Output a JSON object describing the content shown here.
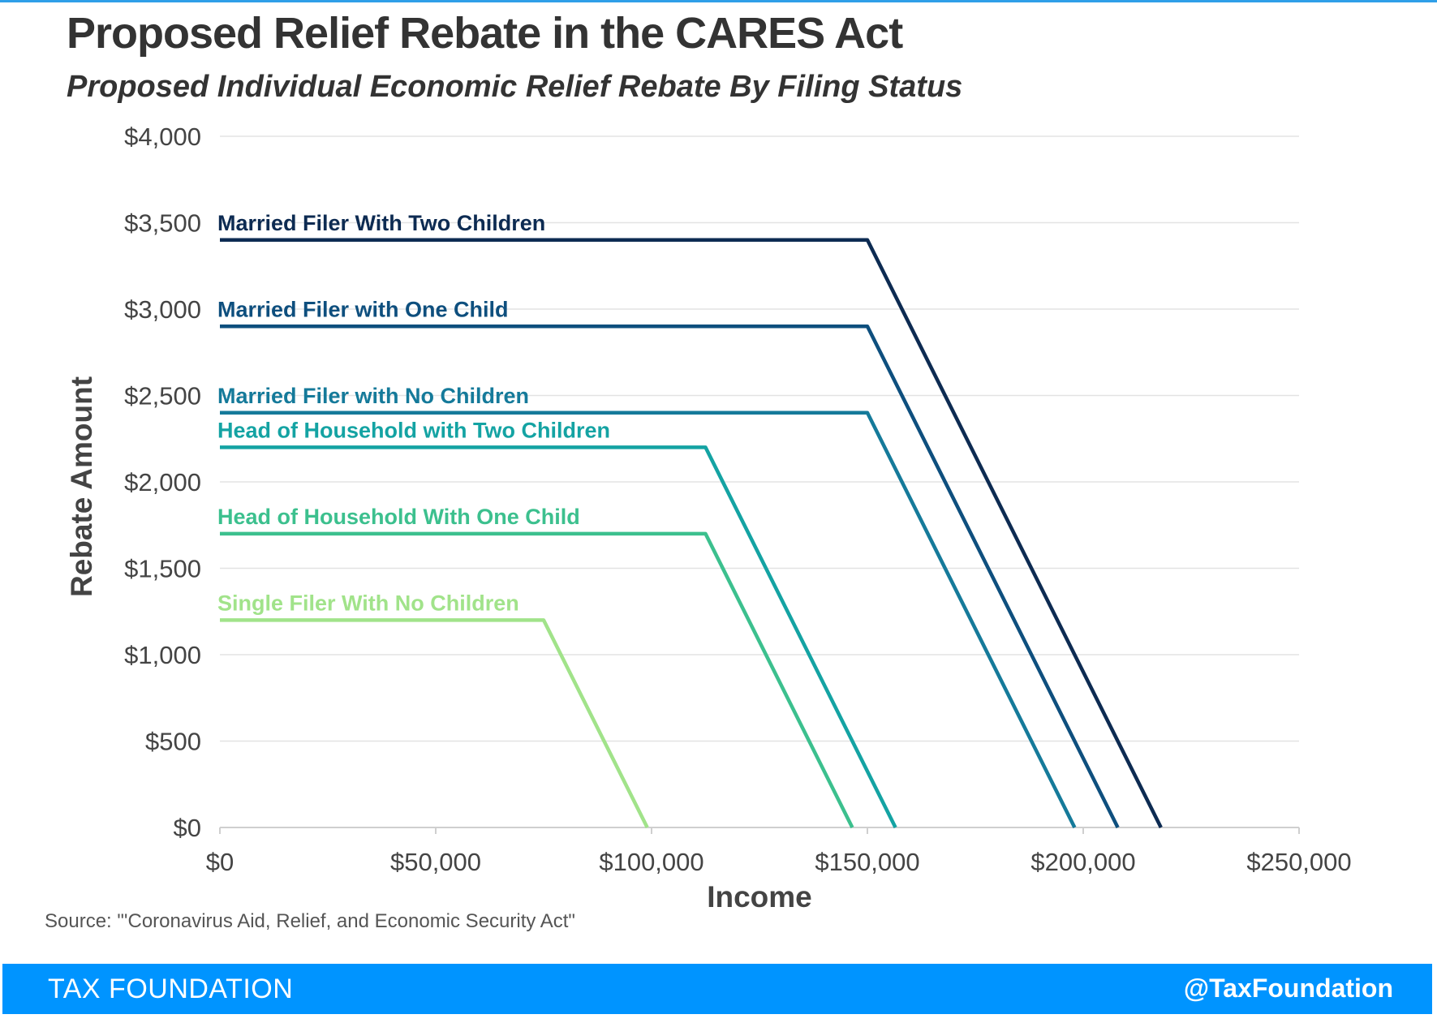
{
  "header": {
    "title": "Proposed Relief Rebate in the CARES Act",
    "subtitle": "Proposed Individual Economic Relief Rebate By Filing Status"
  },
  "source": "Source: \"'Coronavirus Aid, Relief, and Economic Security Act\"",
  "footer": {
    "brand": "TAX FOUNDATION",
    "handle": "@TaxFoundation",
    "background_color": "#0094ff"
  },
  "chart_data": {
    "type": "line",
    "title": "Proposed Relief Rebate in the CARES Act",
    "subtitle": "Proposed Individual Economic Relief Rebate By Filing Status",
    "xlabel": "Income",
    "ylabel": "Rebate Amount",
    "xlim": [
      0,
      250000
    ],
    "ylim": [
      0,
      4000
    ],
    "x_ticks": [
      0,
      50000,
      100000,
      150000,
      200000,
      250000
    ],
    "x_tick_labels": [
      "$0",
      "$50,000",
      "$100,000",
      "$150,000",
      "$200,000",
      "$250,000"
    ],
    "y_ticks": [
      0,
      500,
      1000,
      1500,
      2000,
      2500,
      3000,
      3500,
      4000
    ],
    "y_tick_labels": [
      "$0",
      "$500",
      "$1,000",
      "$1,500",
      "$2,000",
      "$2,500",
      "$3,000",
      "$3,500",
      "$4,000"
    ],
    "grid": true,
    "legend": "inline labels above each line",
    "series": [
      {
        "name": "Married Filer With Two Children",
        "color": "#0d2b52",
        "points": [
          [
            0,
            3400
          ],
          [
            150000,
            3400
          ],
          [
            218000,
            0
          ]
        ]
      },
      {
        "name": "Married Filer with One Child",
        "color": "#0e4f7e",
        "points": [
          [
            0,
            2900
          ],
          [
            150000,
            2900
          ],
          [
            208000,
            0
          ]
        ]
      },
      {
        "name": "Married Filer with No Children",
        "color": "#157a9a",
        "points": [
          [
            0,
            2400
          ],
          [
            150000,
            2400
          ],
          [
            198000,
            0
          ]
        ]
      },
      {
        "name": "Head of Household with Two Children",
        "color": "#14a3a3",
        "points": [
          [
            0,
            2200
          ],
          [
            112500,
            2200
          ],
          [
            156500,
            0
          ]
        ]
      },
      {
        "name": "Head of Household With One Child",
        "color": "#3cc08e",
        "points": [
          [
            0,
            1700
          ],
          [
            112500,
            1700
          ],
          [
            146500,
            0
          ]
        ]
      },
      {
        "name": "Single Filer With No Children",
        "color": "#a1e38a",
        "points": [
          [
            0,
            1200
          ],
          [
            75000,
            1200
          ],
          [
            99000,
            0
          ]
        ]
      }
    ]
  }
}
